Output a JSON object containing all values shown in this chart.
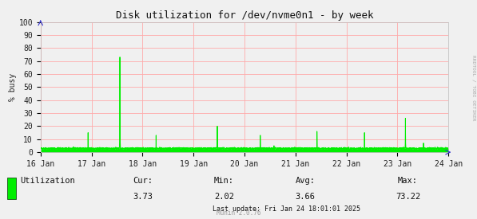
{
  "title": "Disk utilization for /dev/nvme0n1 - by week",
  "ylabel": "% busy",
  "bg_color": "#f0f0f0",
  "plot_bg_color": "#f0f0f0",
  "grid_color": "#ffaaaa",
  "line_color": "#00ee00",
  "fill_color": "#00ee00",
  "ylim": [
    0,
    100
  ],
  "yticks": [
    0,
    10,
    20,
    30,
    40,
    50,
    60,
    70,
    80,
    90,
    100
  ],
  "xtick_labels": [
    "16 Jan",
    "17 Jan",
    "18 Jan",
    "19 Jan",
    "20 Jan",
    "21 Jan",
    "22 Jan",
    "23 Jan",
    "24 Jan"
  ],
  "legend_label": "Utilization",
  "cur_val": "3.73",
  "min_val": "2.02",
  "avg_val": "3.66",
  "max_val": "73.22",
  "last_update": "Last update: Fri Jan 24 18:01:01 2025",
  "munin_version": "Munin 2.0.76",
  "right_label": "RRDTOOL / TOBI OETIKER",
  "title_fontsize": 9,
  "axis_fontsize": 7,
  "legend_fontsize": 7.5
}
